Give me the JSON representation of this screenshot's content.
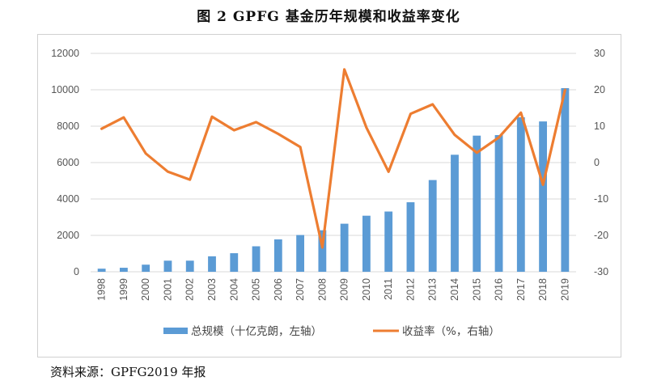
{
  "figure": {
    "title": "图 2   GPFG 基金历年规模和收益率变化",
    "source": "资料来源：GPFG2019 年报"
  },
  "chart_data": {
    "type": "bar",
    "title": "图 2   GPFG 基金历年规模和收益率变化",
    "categories": [
      "1998",
      "1999",
      "2000",
      "2001",
      "2002",
      "2003",
      "2004",
      "2005",
      "2006",
      "2007",
      "2008",
      "2009",
      "2010",
      "2011",
      "2012",
      "2013",
      "2014",
      "2015",
      "2016",
      "2017",
      "2018",
      "2019"
    ],
    "series": [
      {
        "name": "总规模（十亿克朗，左轴）",
        "type": "bar",
        "axis": "left",
        "color": "#5b9bd5",
        "values": [
          170,
          220,
          390,
          610,
          610,
          850,
          1020,
          1400,
          1780,
          2020,
          2280,
          2640,
          3080,
          3310,
          3820,
          5040,
          6430,
          7480,
          7510,
          8490,
          8260,
          10090
        ]
      },
      {
        "name": "收益率（%，右轴）",
        "type": "line",
        "axis": "right",
        "color": "#ed7d31",
        "values": [
          9.3,
          12.4,
          2.5,
          -2.5,
          -4.7,
          12.6,
          8.9,
          11.1,
          7.9,
          4.3,
          -23.3,
          25.6,
          9.6,
          -2.5,
          13.4,
          16.0,
          7.6,
          2.7,
          6.9,
          13.7,
          -6.1,
          20.0
        ]
      }
    ],
    "y_left": {
      "min": 0,
      "max": 12000,
      "ticks": [
        0,
        2000,
        4000,
        6000,
        8000,
        10000,
        12000
      ]
    },
    "y_right": {
      "min": -30,
      "max": 30,
      "ticks": [
        -30,
        -20,
        -10,
        0,
        10,
        20,
        30
      ]
    },
    "legend": [
      "总规模（十亿克朗，左轴）",
      "收益率（%，右轴）"
    ],
    "legend_position": "bottom"
  }
}
